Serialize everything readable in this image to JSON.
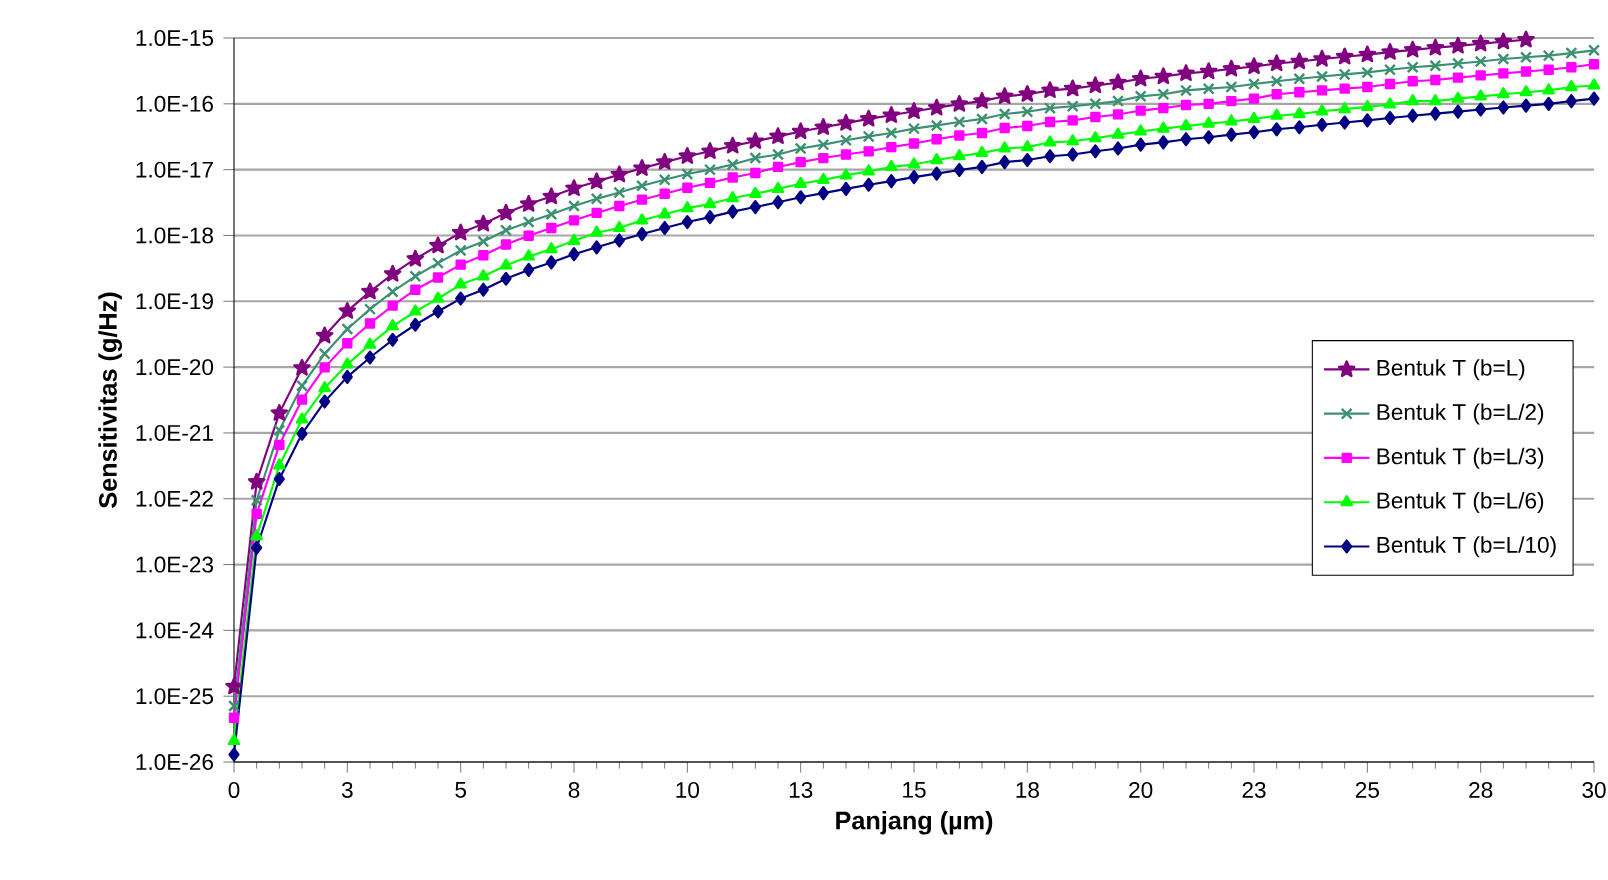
{
  "chart_data": {
    "type": "line",
    "xlabel": "Panjang (µm)",
    "ylabel": "Sensitivitas (g/Hz)",
    "log": "y",
    "grid": "y",
    "legend": "right",
    "line_style": "solid",
    "x": [
      0,
      0.5,
      1,
      1.5,
      2,
      2.5,
      3,
      3.5,
      4,
      4.5,
      5,
      5.5,
      6,
      6.5,
      7,
      7.5,
      8,
      8.5,
      9,
      9.5,
      10,
      10.5,
      11,
      11.5,
      12,
      12.5,
      13,
      13.5,
      14,
      14.5,
      15,
      15.5,
      16,
      16.5,
      17,
      17.5,
      18,
      18.5,
      19,
      19.5,
      20,
      20.5,
      21,
      21.5,
      22,
      22.5,
      23,
      23.5,
      24,
      24.5,
      25,
      25.5,
      26,
      26.5,
      27,
      27.5,
      28,
      28.5,
      29,
      29.5,
      30
    ],
    "xlim": [
      0,
      30
    ],
    "xticks": [
      0,
      {
        "value": 2.5,
        "label": "3"
      },
      5,
      {
        "value": 7.5,
        "label": "8"
      },
      10,
      {
        "value": 12.5,
        "label": "13"
      },
      15,
      {
        "value": 17.5,
        "label": "18"
      },
      20,
      {
        "value": 22.5,
        "label": "23"
      },
      25,
      {
        "value": 27.5,
        "label": "28"
      },
      30
    ],
    "ylim": [
      1e-26,
      1e-15
    ],
    "yticks": [
      {
        "value": 1e-26,
        "label": "1.0E-26"
      },
      {
        "value": 1e-25,
        "label": "1.0E-25"
      },
      {
        "value": 1e-24,
        "label": "1.0E-24"
      },
      {
        "value": 1e-23,
        "label": "1.0E-23"
      },
      {
        "value": 1e-22,
        "label": "1.0E-22"
      },
      {
        "value": 1e-21,
        "label": "1.0E-21"
      },
      {
        "value": 1e-20,
        "label": "1.0E-20"
      },
      {
        "value": 1e-19,
        "label": "1.0E-19"
      },
      {
        "value": 1e-18,
        "label": "1.0E-18"
      },
      {
        "value": 1e-17,
        "label": "1.0E-17"
      },
      {
        "value": 1e-16,
        "label": "1.0E-16"
      },
      {
        "value": 1e-15,
        "label": "1.0E-15"
      }
    ],
    "series": [
      {
        "name": "Bentuk T (b=L)",
        "color": "#800080",
        "marker": "star",
        "values": [
          1.4e-25,
          1.8e-22,
          2e-21,
          9.7e-21,
          3e-20,
          7.1e-20,
          1.4e-19,
          2.6e-19,
          4.4e-19,
          7e-19,
          1.1e-18,
          1.5e-18,
          2.2e-18,
          3e-18,
          3.9e-18,
          5.2e-18,
          6.6e-18,
          8.4e-18,
          1.05e-17,
          1.3e-17,
          1.6e-17,
          1.9e-17,
          2.3e-17,
          2.7e-17,
          3.2e-17,
          3.8e-17,
          4.4e-17,
          5.1e-17,
          5.9e-17,
          6.7e-17,
          7.7e-17,
          8.7e-17,
          9.9e-17,
          1.1e-16,
          1.3e-16,
          1.4e-16,
          1.6e-16,
          1.7e-16,
          1.9e-16,
          2.1e-16,
          2.4e-16,
          2.6e-16,
          2.9e-16,
          3.1e-16,
          3.4e-16,
          3.7e-16,
          4.1e-16,
          4.4e-16,
          4.8e-16,
          5.2e-16,
          5.6e-16,
          6.1e-16,
          6.6e-16,
          7.1e-16,
          7.6e-16,
          8.2e-16,
          8.8e-16,
          9.4e-16,
          null,
          null,
          null
        ]
      },
      {
        "name": "Bentuk T (b=L/2)",
        "color": "#3c9070",
        "marker": "cross",
        "values": [
          7.1e-26,
          9.5e-23,
          1.1e-21,
          5.2e-21,
          1.6e-20,
          3.8e-20,
          7.6e-20,
          1.4e-19,
          2.4e-19,
          3.8e-19,
          5.9e-19,
          8.1e-19,
          1.2e-18,
          1.6e-18,
          2.1e-18,
          2.8e-18,
          3.6e-18,
          4.5e-18,
          5.7e-18,
          7e-18,
          8.6e-18,
          1e-17,
          1.2e-17,
          1.5e-17,
          1.7e-17,
          2.1e-17,
          2.4e-17,
          2.8e-17,
          3.2e-17,
          3.6e-17,
          4.2e-17,
          4.7e-17,
          5.3e-17,
          5.9e-17,
          7e-17,
          7.6e-17,
          8.6e-17,
          9.2e-17,
          1e-16,
          1.1e-16,
          1.3e-16,
          1.4e-16,
          1.6e-16,
          1.7e-16,
          1.8e-16,
          2e-16,
          2.2e-16,
          2.4e-16,
          2.6e-16,
          2.8e-16,
          3e-16,
          3.3e-16,
          3.6e-16,
          3.8e-16,
          4.1e-16,
          4.4e-16,
          4.8e-16,
          5.1e-16,
          5.4e-16,
          5.9e-16,
          6.5e-16
        ]
      },
      {
        "name": "Bentuk T (b=L/3)",
        "color": "#ff00ff",
        "marker": "square",
        "values": [
          4.7e-26,
          5.9e-23,
          6.6e-22,
          3.2e-21,
          9.9e-21,
          2.3e-20,
          4.6e-20,
          8.6e-20,
          1.5e-19,
          2.3e-19,
          3.6e-19,
          5e-19,
          7.3e-19,
          9.9e-19,
          1.3e-18,
          1.7e-18,
          2.2e-18,
          2.8e-18,
          3.5e-18,
          4.3e-18,
          5.3e-18,
          6.3e-18,
          7.6e-18,
          8.9e-18,
          1.1e-17,
          1.3e-17,
          1.5e-17,
          1.7e-17,
          1.9e-17,
          2.2e-17,
          2.5e-17,
          2.9e-17,
          3.3e-17,
          3.6e-17,
          4.3e-17,
          4.6e-17,
          5.3e-17,
          5.6e-17,
          6.3e-17,
          6.9e-17,
          7.9e-17,
          8.6e-17,
          9.6e-17,
          1e-16,
          1.1e-16,
          1.2e-16,
          1.4e-16,
          1.5e-16,
          1.6e-16,
          1.7e-16,
          1.8e-16,
          2e-16,
          2.2e-16,
          2.3e-16,
          2.5e-16,
          2.7e-16,
          2.9e-16,
          3.1e-16,
          3.3e-16,
          3.6e-16,
          4e-16
        ]
      },
      {
        "name": "Bentuk T (b=L/6)",
        "color": "#00ff00",
        "marker": "triangle",
        "values": [
          2.1e-26,
          2.7e-23,
          3.2e-22,
          1.6e-21,
          4.8e-21,
          1.1e-20,
          2.2e-20,
          4.2e-20,
          7e-20,
          1.1e-19,
          1.8e-19,
          2.4e-19,
          3.5e-19,
          4.8e-19,
          6.2e-19,
          8.3e-19,
          1.1e-18,
          1.3e-18,
          1.7e-18,
          2.1e-18,
          2.6e-18,
          3e-18,
          3.7e-18,
          4.3e-18,
          5.1e-18,
          6.1e-18,
          7e-18,
          8.2e-18,
          9.4e-18,
          1.1e-17,
          1.2e-17,
          1.4e-17,
          1.6e-17,
          1.8e-17,
          2.1e-17,
          2.2e-17,
          2.6e-17,
          2.7e-17,
          3e-17,
          3.4e-17,
          3.8e-17,
          4.2e-17,
          4.6e-17,
          5e-17,
          5.4e-17,
          5.9e-17,
          6.6e-17,
          7e-17,
          7.7e-17,
          8.3e-17,
          9e-17,
          9.8e-17,
          1.1e-16,
          1.1e-16,
          1.2e-16,
          1.3e-16,
          1.4e-16,
          1.5e-16,
          1.6e-16,
          1.8e-16,
          1.9e-16
        ]
      },
      {
        "name": "Bentuk T (b=L/10)",
        "color": "#000080",
        "marker": "diamond",
        "values": [
          1.3e-26,
          1.8e-23,
          2e-22,
          9.7e-22,
          3e-21,
          7.1e-21,
          1.4e-20,
          2.6e-20,
          4.4e-20,
          7e-20,
          1.1e-19,
          1.5e-19,
          2.2e-19,
          3e-19,
          3.9e-19,
          5.2e-19,
          6.6e-19,
          8.4e-19,
          1.05e-18,
          1.3e-18,
          1.6e-18,
          1.9e-18,
          2.3e-18,
          2.7e-18,
          3.2e-18,
          3.8e-18,
          4.4e-18,
          5.1e-18,
          5.9e-18,
          6.7e-18,
          7.7e-18,
          8.7e-18,
          9.9e-18,
          1.1e-17,
          1.3e-17,
          1.4e-17,
          1.6e-17,
          1.7e-17,
          1.9e-17,
          2.1e-17,
          2.4e-17,
          2.6e-17,
          2.9e-17,
          3.1e-17,
          3.4e-17,
          3.7e-17,
          4.1e-17,
          4.4e-17,
          4.8e-17,
          5.2e-17,
          5.6e-17,
          6.1e-17,
          6.6e-17,
          7.1e-17,
          7.6e-17,
          8.2e-17,
          8.8e-17,
          9.4e-17,
          1e-16,
          1.1e-16,
          1.2e-16
        ]
      }
    ]
  }
}
